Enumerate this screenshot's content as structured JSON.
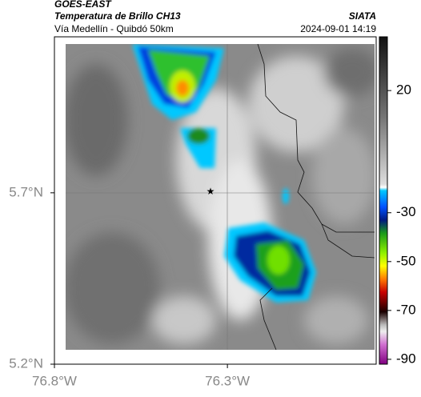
{
  "header": {
    "satellite": "GOES-EAST",
    "product": "Temperatura de Brillo CH13",
    "region": "Vía Medellín - Quibdó 50km",
    "source": "SIATA",
    "datetime": "2024-09-01 14:19"
  },
  "map": {
    "xlim": [
      -76.8,
      -75.87
    ],
    "ylim": [
      5.2,
      6.155
    ],
    "xticks": [
      {
        "value": -76.8,
        "label": "76.8°W"
      },
      {
        "value": -76.3,
        "label": "76.3°W"
      }
    ],
    "yticks": [
      {
        "value": 5.7,
        "label": "5.7°N"
      },
      {
        "value": 5.2,
        "label": "5.2°N"
      }
    ]
  },
  "colorbar": {
    "lim": [
      -92,
      42
    ],
    "ticks": [
      20,
      -30,
      -50,
      -70,
      -90
    ]
  }
}
